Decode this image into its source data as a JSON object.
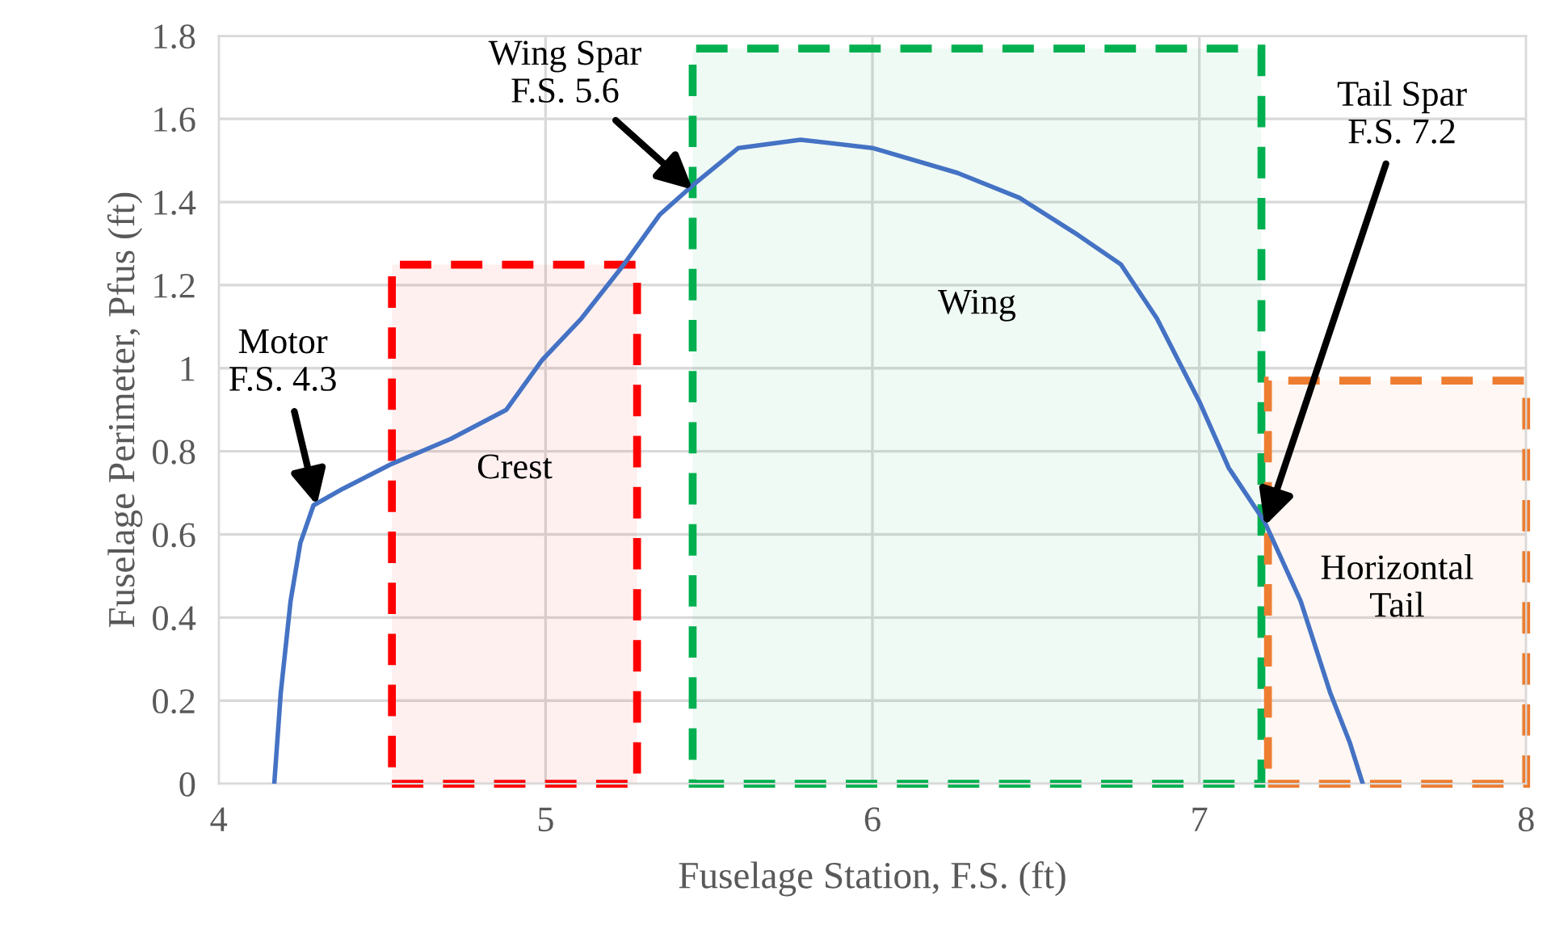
{
  "chart_data": {
    "type": "line",
    "xlabel": "Fuselage Station, F.S. (ft)",
    "ylabel": "Fuselage Perimeter, Pfus (ft)",
    "xlim": [
      4,
      8
    ],
    "xticks": [
      4,
      5,
      6,
      7,
      8
    ],
    "ylim": [
      0,
      1.8
    ],
    "yticks": [
      0,
      0.2,
      0.4,
      0.6,
      0.8,
      1,
      1.2,
      1.4,
      1.6,
      1.8
    ],
    "grid": true,
    "marker": "none",
    "line_style": "solid",
    "series": [
      {
        "color": "#4472c4",
        "x": [
          4.17,
          4.19,
          4.22,
          4.25,
          4.29,
          4.38,
          4.53,
          4.71,
          4.88,
          4.99,
          5.11,
          5.24,
          5.35,
          5.45,
          5.59,
          5.78,
          6.0,
          6.26,
          6.45,
          6.63,
          6.76,
          6.87,
          7.0,
          7.09,
          7.2,
          7.31,
          7.4,
          7.46,
          7.5
        ],
        "values": [
          0,
          0.22,
          0.44,
          0.58,
          0.67,
          0.71,
          0.77,
          0.83,
          0.9,
          1.02,
          1.12,
          1.25,
          1.37,
          1.44,
          1.53,
          1.55,
          1.53,
          1.47,
          1.41,
          1.32,
          1.25,
          1.12,
          0.92,
          0.76,
          0.63,
          0.44,
          0.22,
          0.1,
          0
        ]
      }
    ],
    "bands": [
      {
        "axis": "x",
        "from": 4.53,
        "to": 5.28,
        "color": "#ff0000",
        "label": "Crest"
      },
      {
        "axis": "x",
        "from": 5.45,
        "to": 7.19,
        "color": "#00b050",
        "label": "Wing"
      },
      {
        "axis": "x",
        "from": 7.21,
        "to": 8.0,
        "color": "#ed7d31",
        "label": "Horizontal\nTail"
      }
    ],
    "annotations": [
      {
        "text": "Motor\nF.S. 4.3",
        "x": 4.3,
        "y": 0.67
      },
      {
        "text": "Wing Spar\nF.S. 5.6",
        "x": 5.45,
        "y": 1.43
      },
      {
        "text": "Tail Spar\nF.S. 7.2",
        "x": 7.2,
        "y": 0.62
      }
    ]
  }
}
